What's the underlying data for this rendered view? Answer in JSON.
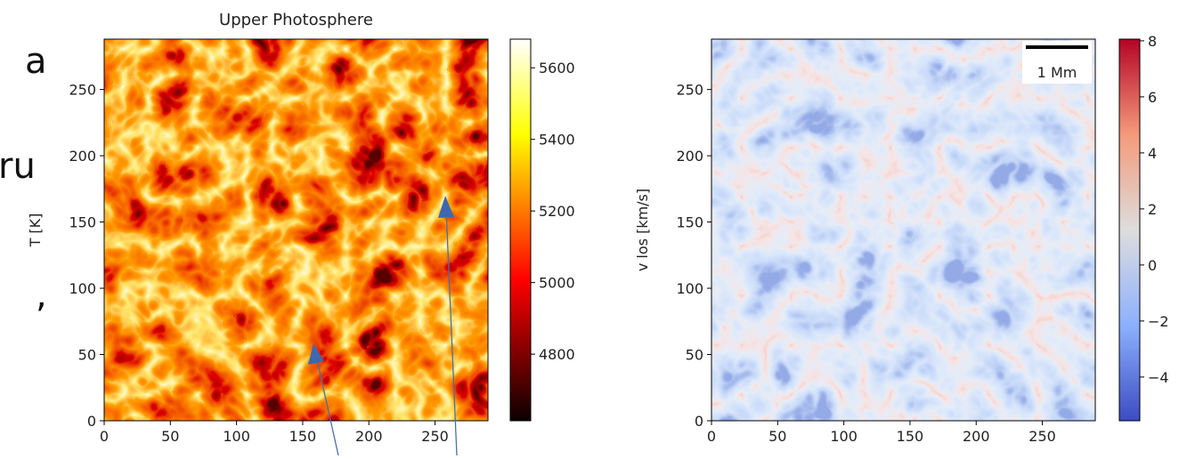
{
  "side_text": [
    "a",
    "ru",
    ","
  ],
  "chart_data": [
    {
      "type": "heatmap",
      "title": "Upper Photosphere",
      "ylabel": "T [K]",
      "xlim": [
        0,
        290
      ],
      "ylim": [
        0,
        288
      ],
      "xticks": [
        0,
        50,
        100,
        150,
        200,
        250
      ],
      "yticks": [
        0,
        50,
        100,
        150,
        200,
        250
      ],
      "colorbar": {
        "colormap": "hot",
        "clim": [
          4614,
          5680
        ],
        "ticks": [
          4800,
          5000,
          5200,
          5400,
          5600
        ]
      }
    },
    {
      "type": "heatmap",
      "ylabel": "v los [km/s]",
      "scalebar_label": "1 Mm",
      "xlim": [
        0,
        290
      ],
      "ylim": [
        0,
        288
      ],
      "xticks": [
        0,
        50,
        100,
        150,
        200,
        250
      ],
      "yticks": [
        0,
        50,
        100,
        150,
        200,
        250
      ],
      "colorbar": {
        "colormap": "coolwarm",
        "clim": [
          -5.56,
          8.06
        ],
        "ticks": [
          {
            "value": -4,
            "label": "−4"
          },
          {
            "value": -2,
            "label": "−2"
          },
          0,
          2,
          4,
          6,
          8
        ]
      }
    }
  ]
}
